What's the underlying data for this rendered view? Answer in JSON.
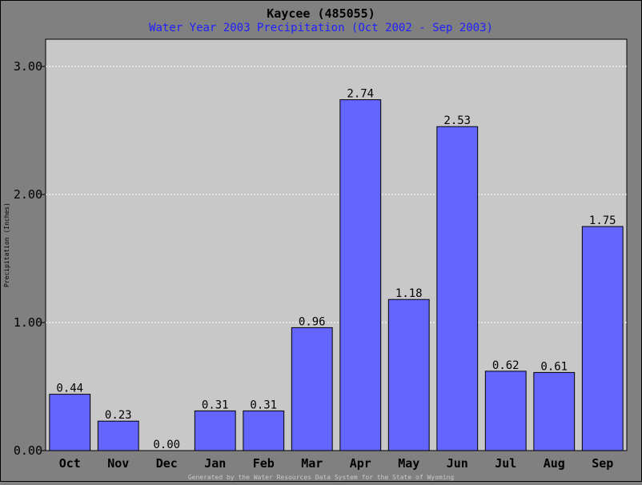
{
  "chart_data": {
    "type": "bar",
    "title": "Kaycee (485055)",
    "subtitle": "Water Year 2003 Precipitation (Oct 2002 - Sep 2003)",
    "ylabel": "Precipitation (Inches)",
    "xlabel": "",
    "categories": [
      "Oct",
      "Nov",
      "Dec",
      "Jan",
      "Feb",
      "Mar",
      "Apr",
      "May",
      "Jun",
      "Jul",
      "Aug",
      "Sep"
    ],
    "values": [
      0.44,
      0.23,
      0.0,
      0.31,
      0.31,
      0.96,
      2.74,
      1.18,
      2.53,
      0.62,
      0.61,
      1.75
    ],
    "value_labels": [
      "0.44",
      "0.23",
      "0.00",
      "0.31",
      "0.31",
      "0.96",
      "2.74",
      "1.18",
      "2.53",
      "0.62",
      "0.61",
      "1.75"
    ],
    "ylim": [
      0,
      3.0
    ],
    "yticks": [
      0,
      1,
      2,
      3
    ],
    "ytick_labels": [
      "0.00",
      "1.00",
      "2.00",
      "3.00"
    ],
    "grid": true,
    "legend": "none",
    "colors": {
      "background": "#808080",
      "plot": "#c8c8c8",
      "bar": "#6464ff",
      "grid": "#ffffff",
      "title": "#000000",
      "subtitle": "#1f1fff",
      "footer": "#c8c8c8"
    },
    "footer": "Generated by the Water Resources Data System for the State of Wyoming"
  }
}
